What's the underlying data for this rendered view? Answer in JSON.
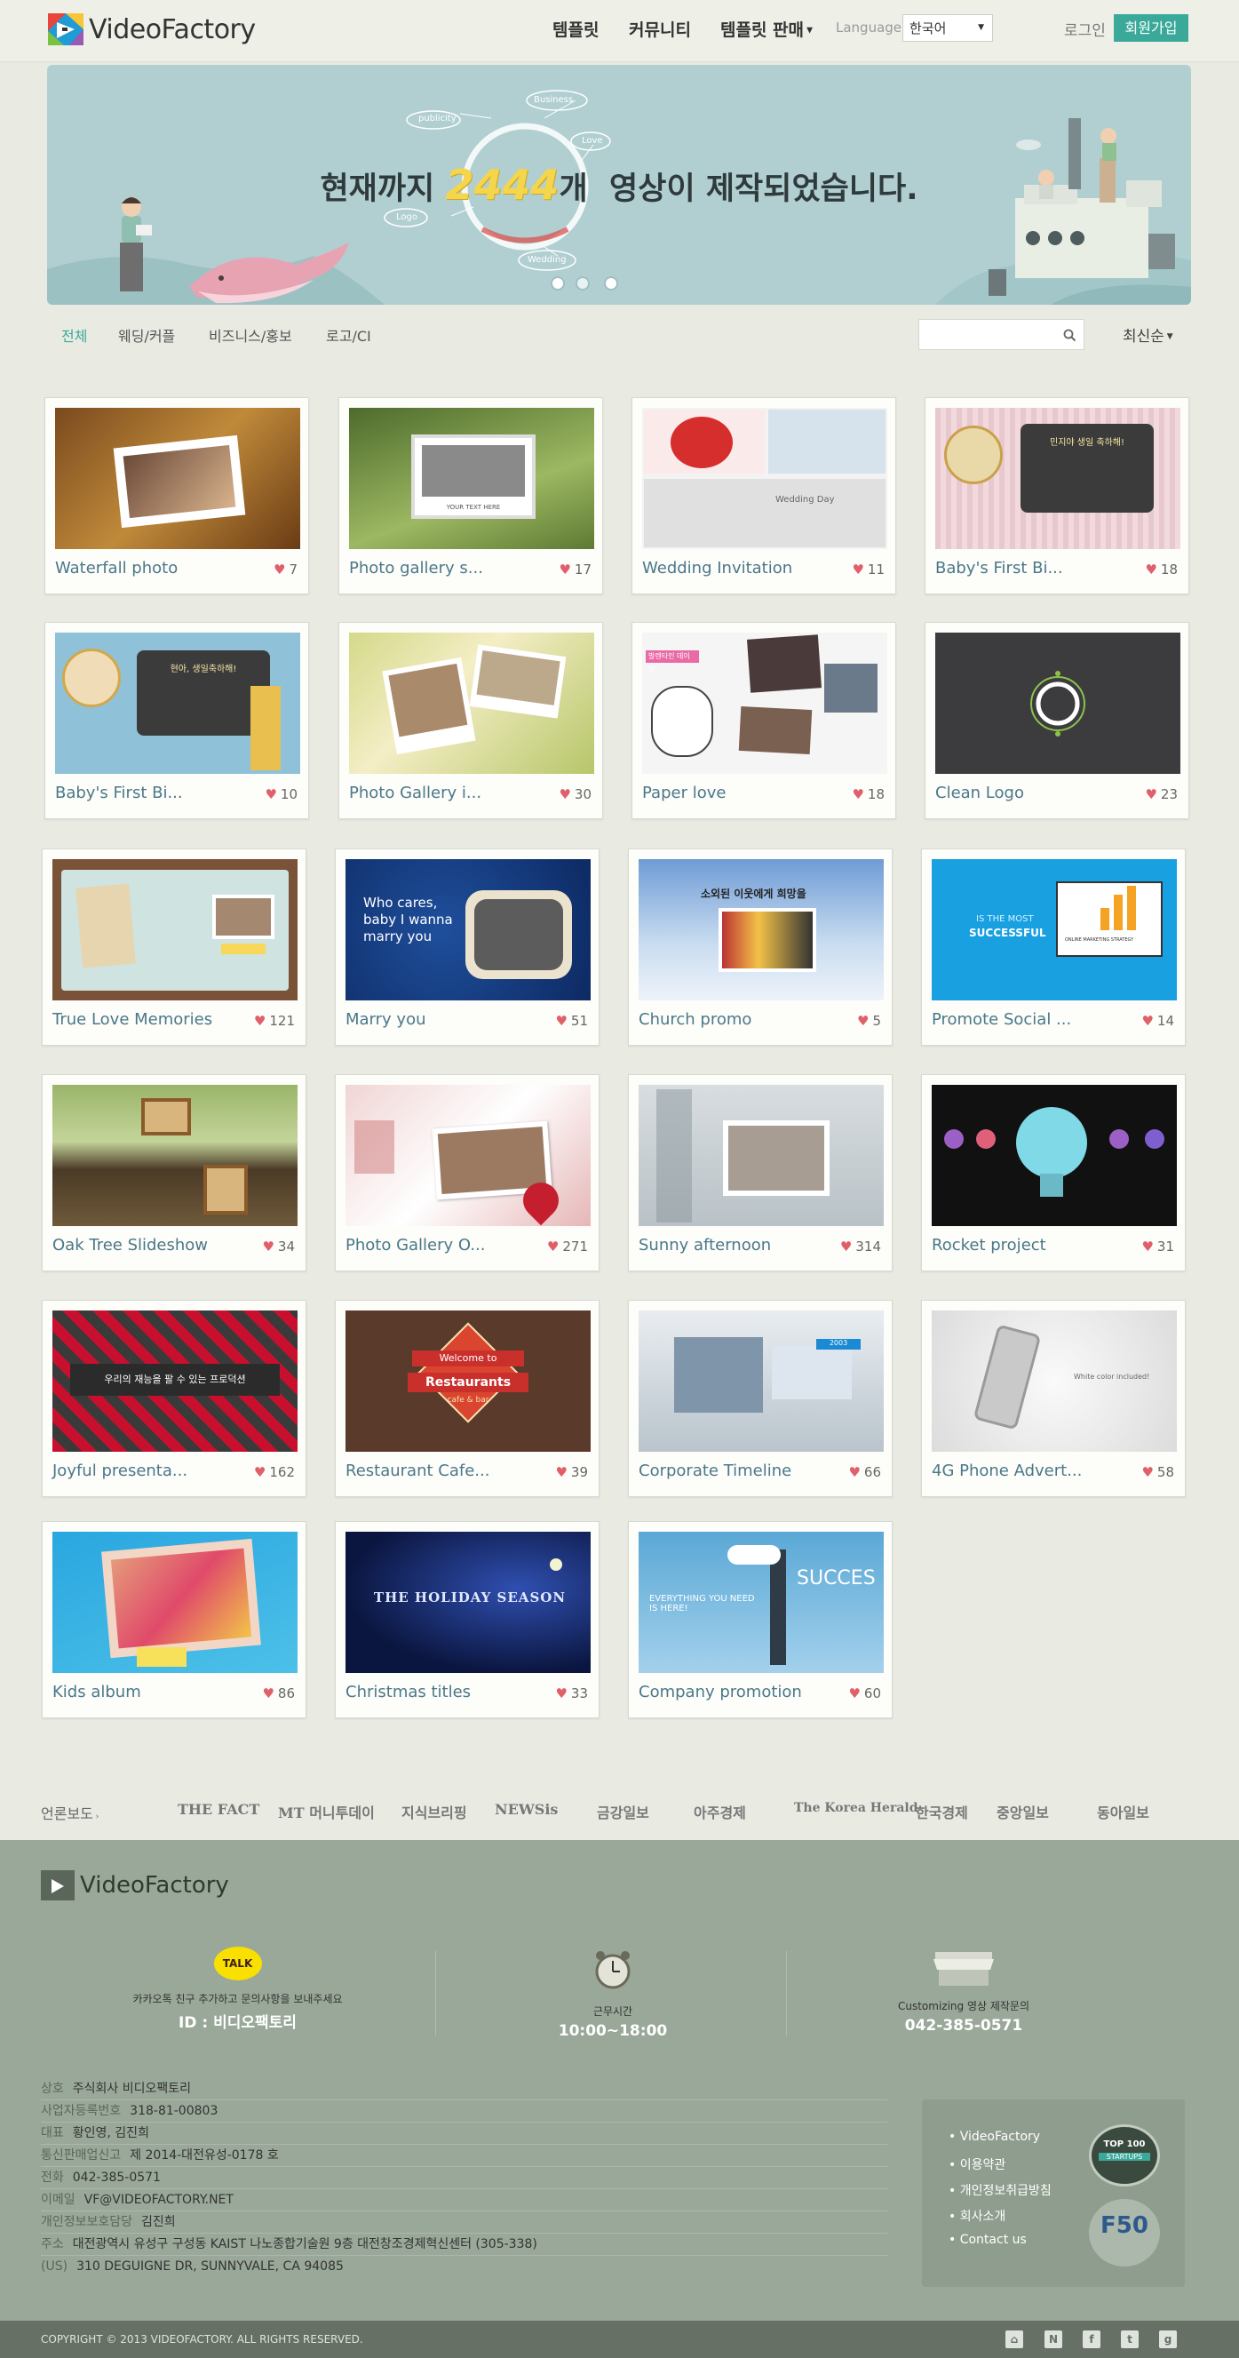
{
  "header": {
    "logo_text": "VideoFactory",
    "nav": [
      "템플릿",
      "커뮤니티",
      "템플릿 판매"
    ],
    "language_label": "Language",
    "language_value": "한국어",
    "login": "로그인",
    "signup": "회원가입"
  },
  "banner": {
    "prefix": "현재까지",
    "count": "2444",
    "suffix": "개  영상이 제작되었습니다.",
    "bubbles": [
      "publicity",
      "Business",
      "Love",
      "Logo",
      "Wedding"
    ]
  },
  "filters": [
    "전체",
    "웨딩/커플",
    "비즈니스/홍보",
    "로고/CI"
  ],
  "sort_label": "최신순",
  "cards": [
    {
      "title": "Waterfall photo",
      "likes": "7"
    },
    {
      "title": "Photo gallery s...",
      "likes": "17"
    },
    {
      "title": "Wedding Invitation",
      "likes": "11"
    },
    {
      "title": "Baby's First Bi...",
      "likes": "18"
    },
    {
      "title": "Baby's First Bi...",
      "likes": "10"
    },
    {
      "title": "Photo Gallery i...",
      "likes": "30"
    },
    {
      "title": "Paper love",
      "likes": "18"
    },
    {
      "title": "Clean Logo",
      "likes": "23"
    },
    {
      "title": "True Love Memories",
      "likes": "121"
    },
    {
      "title": "Marry you",
      "likes": "51"
    },
    {
      "title": "Church promo",
      "likes": "5"
    },
    {
      "title": "Promote Social ...",
      "likes": "14"
    },
    {
      "title": "Oak Tree Slideshow",
      "likes": "34"
    },
    {
      "title": "Photo Gallery O...",
      "likes": "271"
    },
    {
      "title": "Sunny afternoon",
      "likes": "314"
    },
    {
      "title": "Rocket project",
      "likes": "31"
    },
    {
      "title": "Joyful presenta...",
      "likes": "162"
    },
    {
      "title": "Restaurant Cafe...",
      "likes": "39"
    },
    {
      "title": "Corporate Timeline",
      "likes": "66"
    },
    {
      "title": "4G Phone Advert...",
      "likes": "58"
    },
    {
      "title": "Kids album",
      "likes": "86"
    },
    {
      "title": "Christmas titles",
      "likes": "33"
    },
    {
      "title": "Company promotion",
      "likes": "60"
    }
  ],
  "thumb_text": {
    "t2": "YOUR TEXT HERE",
    "t3": "Wedding Day",
    "t4": "민지야 생일 축하해!",
    "t5": "현아, 생일축하해!",
    "t7": "발렌타인 데이날...",
    "t10": "Who cares, baby I wanna marry you",
    "t11": "소외된 이웃에게 희망을",
    "t12a": "IS THE MOST",
    "t12b": "SUCCESSFUL",
    "t12c": "ONLINE MARKETING STRATEGY",
    "t17": "우리의 재능을 팔 수 있는 프로덕션",
    "t18a": "Welcome to",
    "t18b": "Restaurants",
    "t18c": "cafe & bar",
    "t20": "White color included!",
    "t22": "THE HOLIDAY SEASON",
    "t23a": "SUCCES",
    "t23b": "EVERYTHING YOU NEED IS HERE!"
  },
  "press": {
    "label": "언론보도",
    "items": [
      "THE FACT",
      "MT 머니투데이",
      "지식브리핑",
      "NEWSis",
      "금강일보",
      "아주경제",
      "The Korea Herald",
      "한국경제",
      "중앙일보",
      "동아일보"
    ]
  },
  "footer": {
    "logo_text": "VideoFactory",
    "kakao_badge": "TALK",
    "kakao_text": "카카오톡 친구 추가하고 문의사항을 보내주세요",
    "kakao_id": "ID : 비디오팩토리",
    "hours_label": "근무시간",
    "hours_value": "10:00~18:00",
    "custom_label": "Customizing 영상 제작문의",
    "custom_phone": "042-385-0571",
    "info": [
      {
        "label": "상호",
        "value": "주식회사 비디오팩토리"
      },
      {
        "label": "사업자등록번호",
        "value": "318-81-00803"
      },
      {
        "label": "대표",
        "value": "황인영, 김진희"
      },
      {
        "label": "통신판매업신고",
        "value": "제 2014-대전유성-0178 호"
      },
      {
        "label": "전화",
        "value": "042-385-0571"
      },
      {
        "label": "이메일",
        "value": "VF@VIDEOFACTORY.NET"
      },
      {
        "label": "개인정보보호담당",
        "value": "김진희"
      },
      {
        "label": "주소",
        "value": "대전광역시 유성구 구성동 KAIST 나노종합기술원 9층 대전창조경제혁신센터 (305-338)"
      },
      {
        "label": "(US)",
        "value": "310 DEGUIGNE DR, SUNNYVALE, CA 94085"
      }
    ],
    "links": [
      "VideoFactory",
      "이용약관",
      "개인정보취급방침",
      "회사소개",
      "Contact us"
    ],
    "badge1_a": "TOP 100",
    "badge1_b": "STARTUPS",
    "badge2": "F50",
    "copyright": "COPYRIGHT © 2013 VIDEOFACTORY. ALL RIGHTS RESERVED."
  },
  "colors": {
    "accent": "#3ba99a",
    "heart": "#e0606a",
    "footer_bg": "#99a898",
    "banner_bg": "#b1cfd1"
  }
}
